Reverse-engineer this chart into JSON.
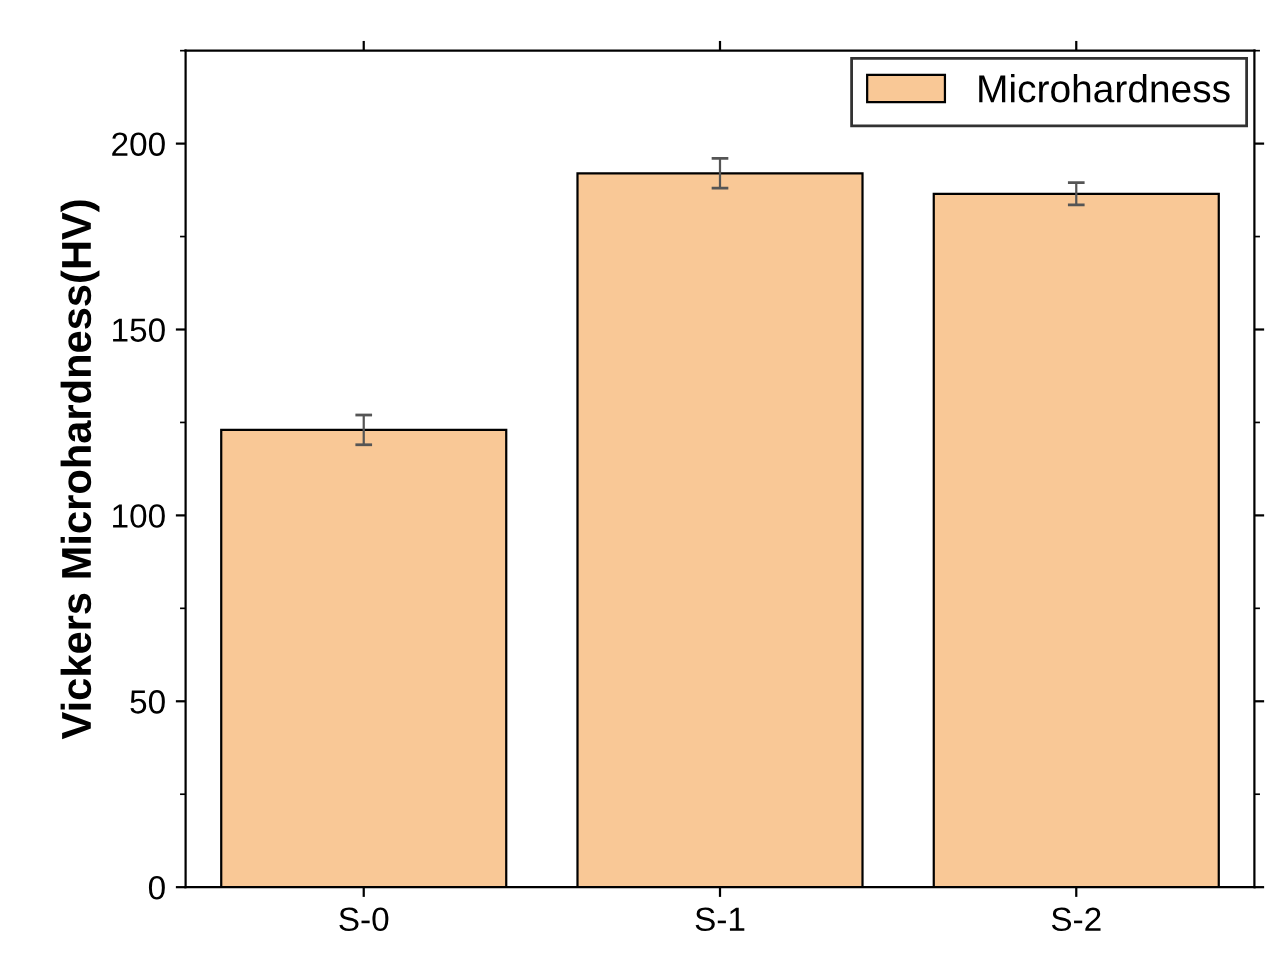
{
  "chart_data": {
    "type": "bar",
    "ylabel": "Vickers Microhardness(HV)",
    "categories": [
      "S-0",
      "S-1",
      "S-2"
    ],
    "series": [
      {
        "name": "Microhardness",
        "color": "#f9c896",
        "values": [
          123,
          192,
          186.5
        ],
        "errors": [
          4,
          4,
          3
        ]
      }
    ],
    "ylim": [
      0,
      225
    ],
    "yticks": [
      0,
      50,
      100,
      150,
      200
    ],
    "grid": false,
    "legend": "top right"
  }
}
